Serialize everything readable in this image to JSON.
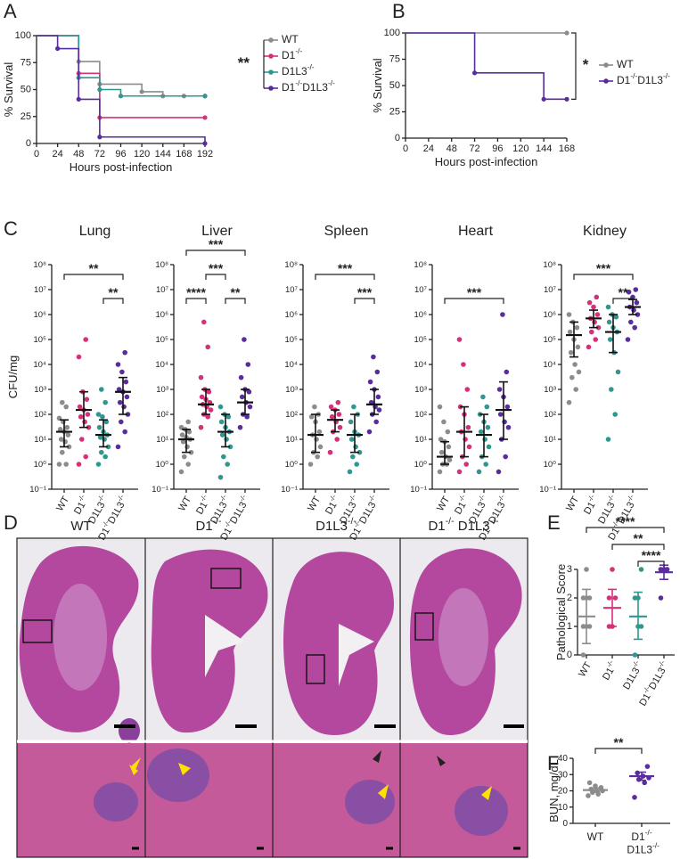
{
  "panels": [
    "A",
    "B",
    "C",
    "D",
    "E",
    "F"
  ],
  "histology": {
    "titles": [
      "WT",
      "D1-/-",
      "D1L3-/-",
      "D1-/- D1L3-/-"
    ]
  },
  "chart_data": [
    {
      "type": "survival",
      "xlabel": "Hours post-infection",
      "ylabel": "% Survival",
      "xlim": [
        0,
        192
      ],
      "xticks": [
        0,
        24,
        48,
        72,
        96,
        120,
        144,
        168,
        192
      ],
      "ylim": [
        0,
        100
      ],
      "yticks": [
        0,
        25,
        50,
        75,
        100
      ],
      "significance": "**",
      "legend": "right",
      "series": [
        {
          "name": "WT",
          "color": "#8c8c8c",
          "x": [
            0,
            48,
            72,
            120,
            144,
            168,
            192
          ],
          "values": [
            100,
            76,
            55,
            48,
            44,
            44,
            44
          ]
        },
        {
          "name": "D1-/-",
          "color": "#d6307a",
          "x": [
            0,
            48,
            72,
            192
          ],
          "values": [
            100,
            65,
            24,
            24
          ]
        },
        {
          "name": "D1L3-/-",
          "color": "#2f9690",
          "x": [
            0,
            48,
            72,
            96,
            192
          ],
          "values": [
            100,
            61,
            50,
            44,
            44
          ]
        },
        {
          "name": "D1-/-D1L3-/-",
          "color": "#5a2d9c",
          "x": [
            0,
            24,
            48,
            72,
            192
          ],
          "values": [
            100,
            88,
            41,
            6,
            0
          ]
        }
      ]
    },
    {
      "type": "survival",
      "xlabel": "Hours post-infection",
      "ylabel": "% Survival",
      "xlim": [
        0,
        168
      ],
      "xticks": [
        0,
        24,
        48,
        72,
        96,
        120,
        144,
        168
      ],
      "ylim": [
        0,
        100
      ],
      "yticks": [
        0,
        25,
        50,
        75,
        100
      ],
      "significance": "*",
      "legend": "right",
      "series": [
        {
          "name": "WT",
          "color": "#8c8c8c",
          "x": [
            0,
            168
          ],
          "values": [
            100,
            100
          ]
        },
        {
          "name": "D1-/-D1L3-/-",
          "color": "#5a2d9c",
          "x": [
            0,
            72,
            144,
            168
          ],
          "values": [
            100,
            62,
            37,
            37
          ]
        }
      ]
    },
    {
      "type": "strip",
      "title": "Lung",
      "ylabel": "CFU/mg",
      "log_scale": true,
      "categories": [
        "WT",
        "D1-/-",
        "D1L3-/-",
        "D1-/-D1L3-/-"
      ],
      "colors": [
        "#8c8c8c",
        "#d6307a",
        "#2f9690",
        "#5a2d9c"
      ],
      "ylim": [
        0.1,
        100000000
      ],
      "yticks": [
        {
          "value": 0.1,
          "label": "10⁻¹"
        },
        {
          "value": 1,
          "label": "10⁰"
        },
        {
          "value": 10,
          "label": "10¹"
        },
        {
          "value": 100,
          "label": "10²"
        },
        {
          "value": 1000,
          "label": "10³"
        },
        {
          "value": 10000,
          "label": "10⁴"
        },
        {
          "value": 100000,
          "label": "10⁵"
        },
        {
          "value": 1000000,
          "label": "10⁶"
        },
        {
          "value": 10000000,
          "label": "10⁷"
        },
        {
          "value": 100000000,
          "label": "10⁸"
        }
      ],
      "values": [
        [
          1,
          1,
          3,
          5,
          8,
          10,
          15,
          20,
          25,
          30,
          50,
          70,
          200,
          300
        ],
        [
          1,
          2,
          10,
          30,
          50,
          80,
          100,
          150,
          200,
          400,
          800,
          20000,
          100000
        ],
        [
          1,
          2,
          3,
          5,
          10,
          12,
          15,
          20,
          30,
          50,
          80,
          100,
          300,
          1000
        ],
        [
          5,
          20,
          50,
          100,
          200,
          300,
          500,
          800,
          1000,
          2000,
          5000,
          10000,
          30000
        ]
      ],
      "centers": [
        20,
        150,
        15,
        800
      ],
      "lows": [
        5,
        30,
        5,
        100
      ],
      "highs": [
        60,
        800,
        60,
        3000
      ],
      "significance": [
        {
          "groups": [
            2,
            3
          ],
          "label": "**"
        },
        {
          "groups": [
            0,
            3
          ],
          "label": "**"
        }
      ]
    },
    {
      "type": "strip",
      "title": "Liver",
      "log_scale": true,
      "categories": [
        "WT",
        "D1-/-",
        "D1L3-/-",
        "D1-/-D1L3-/-"
      ],
      "colors": [
        "#8c8c8c",
        "#d6307a",
        "#2f9690",
        "#5a2d9c"
      ],
      "ylim": [
        0.1,
        100000000
      ],
      "yticks": [
        {
          "value": 0.1,
          "label": "10⁻¹"
        },
        {
          "value": 1,
          "label": "10⁰"
        },
        {
          "value": 10,
          "label": "10¹"
        },
        {
          "value": 100,
          "label": "10²"
        },
        {
          "value": 1000,
          "label": "10³"
        },
        {
          "value": 10000,
          "label": "10⁴"
        },
        {
          "value": 100000,
          "label": "10⁵"
        },
        {
          "value": 1000000,
          "label": "10⁶"
        },
        {
          "value": 10000000,
          "label": "10⁷"
        },
        {
          "value": 100000000,
          "label": "10⁸"
        }
      ],
      "values": [
        [
          0.5,
          1,
          2,
          3,
          5,
          8,
          10,
          12,
          15,
          20,
          25,
          30,
          50
        ],
        [
          30,
          80,
          100,
          150,
          200,
          250,
          300,
          400,
          500,
          800,
          1000,
          3000,
          50000,
          500000
        ],
        [
          0.3,
          1,
          2,
          5,
          10,
          15,
          20,
          30,
          50,
          80,
          100,
          200
        ],
        [
          30,
          80,
          100,
          200,
          300,
          500,
          800,
          1000,
          3000,
          10000,
          100000
        ]
      ],
      "centers": [
        10,
        250,
        20,
        300
      ],
      "lows": [
        3,
        100,
        5,
        100
      ],
      "highs": [
        25,
        1000,
        100,
        1000
      ],
      "significance": [
        {
          "groups": [
            0,
            1
          ],
          "label": "****"
        },
        {
          "groups": [
            2,
            3
          ],
          "label": "**"
        },
        {
          "groups": [
            1,
            2
          ],
          "label": "***"
        },
        {
          "groups": [
            0,
            3
          ],
          "label": "***"
        }
      ]
    },
    {
      "type": "strip",
      "title": "Spleen",
      "log_scale": true,
      "categories": [
        "WT",
        "D1-/-",
        "D1L3-/-",
        "D1-/-D1L3-/-"
      ],
      "colors": [
        "#8c8c8c",
        "#d6307a",
        "#2f9690",
        "#5a2d9c"
      ],
      "ylim": [
        0.1,
        100000000
      ],
      "yticks": [
        {
          "value": 0.1,
          "label": "10⁻¹"
        },
        {
          "value": 1,
          "label": "10⁰"
        },
        {
          "value": 10,
          "label": "10¹"
        },
        {
          "value": 100,
          "label": "10²"
        },
        {
          "value": 1000,
          "label": "10³"
        },
        {
          "value": 10000,
          "label": "10⁴"
        },
        {
          "value": 100000,
          "label": "10⁵"
        },
        {
          "value": 1000000,
          "label": "10⁶"
        },
        {
          "value": 10000000,
          "label": "10⁷"
        },
        {
          "value": 100000000,
          "label": "10⁸"
        }
      ],
      "values": [
        [
          1,
          2,
          3,
          5,
          10,
          15,
          20,
          50,
          80,
          100,
          200
        ],
        [
          3,
          10,
          20,
          30,
          50,
          80,
          100,
          150,
          200,
          300
        ],
        [
          0.5,
          1,
          2,
          3,
          5,
          10,
          15,
          20,
          50,
          100,
          200
        ],
        [
          20,
          50,
          100,
          150,
          200,
          300,
          500,
          1000,
          2000,
          5000,
          20000
        ]
      ],
      "centers": [
        15,
        60,
        15,
        250
      ],
      "lows": [
        3,
        20,
        3,
        100
      ],
      "highs": [
        100,
        150,
        100,
        1000
      ],
      "significance": [
        {
          "groups": [
            2,
            3
          ],
          "label": "***"
        },
        {
          "groups": [
            0,
            3
          ],
          "label": "***"
        }
      ]
    },
    {
      "type": "strip",
      "title": "Heart",
      "log_scale": true,
      "categories": [
        "WT",
        "D1-/-",
        "D1L3-/-",
        "D1-/-D1L3-/-"
      ],
      "colors": [
        "#8c8c8c",
        "#d6307a",
        "#2f9690",
        "#5a2d9c"
      ],
      "ylim": [
        0.1,
        100000000
      ],
      "yticks": [
        {
          "value": 0.1,
          "label": "10⁻¹"
        },
        {
          "value": 1,
          "label": "10⁰"
        },
        {
          "value": 10,
          "label": "10¹"
        },
        {
          "value": 100,
          "label": "10²"
        },
        {
          "value": 1000,
          "label": "10³"
        },
        {
          "value": 10000,
          "label": "10⁴"
        },
        {
          "value": 100000,
          "label": "10⁵"
        },
        {
          "value": 1000000,
          "label": "10⁶"
        },
        {
          "value": 10000000,
          "label": "10⁷"
        },
        {
          "value": 100000000,
          "label": "10⁸"
        }
      ],
      "values": [
        [
          0.5,
          1,
          1,
          1.5,
          2,
          3,
          5,
          8,
          10,
          20,
          50,
          200
        ],
        [
          0.5,
          1,
          2,
          5,
          10,
          20,
          30,
          100,
          200,
          1000,
          10000,
          100000
        ],
        [
          0.5,
          1,
          2,
          5,
          10,
          20,
          30,
          50,
          100,
          200,
          500
        ],
        [
          0.5,
          2,
          10,
          30,
          50,
          100,
          200,
          500,
          1000,
          5000,
          1000000
        ]
      ],
      "centers": [
        2,
        20,
        15,
        150
      ],
      "lows": [
        1,
        2,
        2,
        10
      ],
      "highs": [
        8,
        200,
        100,
        2000
      ],
      "significance": [
        {
          "groups": [
            0,
            3
          ],
          "label": "***"
        }
      ]
    },
    {
      "type": "strip",
      "title": "Kidney",
      "log_scale": true,
      "categories": [
        "WT",
        "D1-/-",
        "D1L3-/-",
        "D1-/-D1L3-/-"
      ],
      "colors": [
        "#8c8c8c",
        "#d6307a",
        "#2f9690",
        "#5a2d9c"
      ],
      "ylim": [
        0.1,
        100000000
      ],
      "yticks": [
        {
          "value": 0.1,
          "label": "10⁻¹"
        },
        {
          "value": 1,
          "label": "10⁰"
        },
        {
          "value": 10,
          "label": "10¹"
        },
        {
          "value": 100,
          "label": "10²"
        },
        {
          "value": 1000,
          "label": "10³"
        },
        {
          "value": 10000,
          "label": "10⁴"
        },
        {
          "value": 100000,
          "label": "10⁵"
        },
        {
          "value": 1000000,
          "label": "10⁶"
        },
        {
          "value": 10000000,
          "label": "10⁷"
        },
        {
          "value": 100000000,
          "label": "10⁸"
        }
      ],
      "values": [
        [
          300,
          1000,
          3000,
          5000,
          10000,
          30000,
          50000,
          100000,
          200000,
          300000,
          500000,
          1000000
        ],
        [
          50000,
          100000,
          200000,
          300000,
          500000,
          700000,
          1000000,
          2000000,
          3000000,
          5000000
        ],
        [
          10,
          100,
          1000,
          5000,
          30000,
          100000,
          200000,
          300000,
          500000,
          800000,
          1000000,
          2000000
        ],
        [
          100000,
          300000,
          500000,
          1000000,
          1500000,
          2000000,
          3000000,
          5000000,
          8000000,
          10000000
        ]
      ],
      "centers": [
        150000,
        700000,
        200000,
        2000000
      ],
      "lows": [
        20000,
        300000,
        30000,
        1000000
      ],
      "highs": [
        500000,
        1500000,
        1000000,
        4000000
      ],
      "significance": [
        {
          "groups": [
            2,
            3
          ],
          "label": "**"
        },
        {
          "groups": [
            0,
            3
          ],
          "label": "***"
        }
      ]
    },
    {
      "type": "strip",
      "ylabel": "Pathological Score",
      "log_scale": false,
      "categories": [
        "WT",
        "D1-/-",
        "D1L3-/-",
        "D1-/-D1L3-/-"
      ],
      "colors": [
        "#8c8c8c",
        "#d6307a",
        "#2f9690",
        "#5a2d9c"
      ],
      "ylim": [
        0,
        3
      ],
      "yticks": [
        0,
        1,
        2,
        3
      ],
      "values": [
        [
          0,
          1,
          1,
          1,
          2,
          2,
          2,
          3
        ],
        [
          1,
          1,
          2,
          2,
          3
        ],
        [
          0,
          1,
          1,
          2,
          2,
          3
        ],
        [
          2,
          3,
          3,
          3,
          3,
          3,
          3
        ]
      ],
      "centers": [
        1.35,
        1.65,
        1.35,
        2.9
      ],
      "lows": [
        0.4,
        1,
        0.55,
        2.65
      ],
      "highs": [
        2.3,
        2.3,
        2.2,
        3.15
      ],
      "significance": [
        {
          "groups": [
            2,
            3
          ],
          "label": "****"
        },
        {
          "groups": [
            1,
            3
          ],
          "label": "**"
        },
        {
          "groups": [
            0,
            3
          ],
          "label": "****"
        }
      ]
    },
    {
      "type": "strip",
      "ylabel": "BUN, mg/dL",
      "log_scale": false,
      "categories": [
        "WT",
        "D1-/- D1L3-/-"
      ],
      "colors": [
        "#8c8c8c",
        "#5a2d9c"
      ],
      "ylim": [
        0,
        40
      ],
      "yticks": [
        0,
        10,
        20,
        30,
        40
      ],
      "values": [
        [
          17,
          18,
          19,
          20,
          20,
          21,
          22,
          23,
          25
        ],
        [
          16,
          25,
          27,
          28,
          29,
          31,
          35
        ]
      ],
      "centers": [
        20.5,
        29
      ],
      "lows": [
        19.3,
        26.5
      ],
      "highs": [
        21.7,
        31.5
      ],
      "significance": [
        {
          "groups": [
            0,
            1
          ],
          "label": "**"
        }
      ]
    }
  ]
}
